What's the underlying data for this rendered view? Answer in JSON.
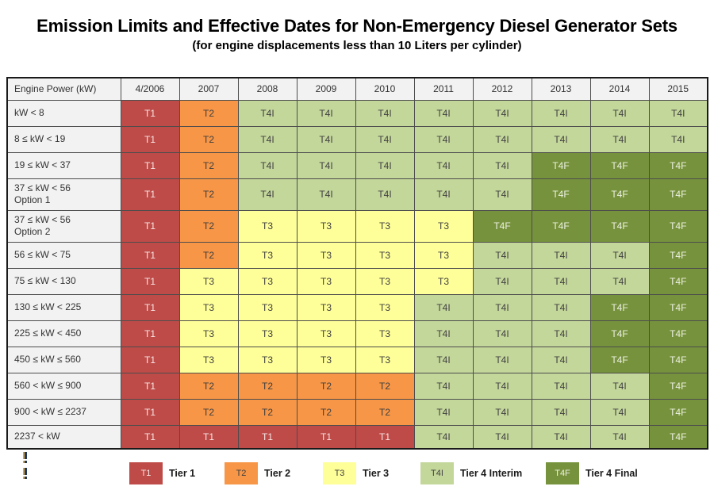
{
  "title": "Emission Limits and Effective Dates for Non-Emergency Diesel Generator Sets",
  "subtitle": "(for engine displacements less than 10 Liters per cylinder)",
  "chart_data": {
    "type": "table",
    "title": "Emission Limits and Effective Dates for Non-Emergency Diesel Generator Sets",
    "subtitle": "(for engine displacements less than 10 Liters per cylinder)",
    "columns": [
      "Engine Power (kW)",
      "4/2006",
      "2007",
      "2008",
      "2009",
      "2010",
      "2011",
      "2012",
      "2013",
      "2014",
      "2015"
    ],
    "rows": [
      {
        "label": "kW < 8",
        "sublabel": "",
        "values": [
          "T1",
          "T2",
          "T4I",
          "T4I",
          "T4I",
          "T4I",
          "T4I",
          "T4I",
          "T4I",
          "T4I"
        ]
      },
      {
        "label": "8 ≤ kW < 19",
        "sublabel": "",
        "values": [
          "T1",
          "T2",
          "T4I",
          "T4I",
          "T4I",
          "T4I",
          "T4I",
          "T4I",
          "T4I",
          "T4I"
        ]
      },
      {
        "label": "19 ≤ kW < 37",
        "sublabel": "",
        "values": [
          "T1",
          "T2",
          "T4I",
          "T4I",
          "T4I",
          "T4I",
          "T4I",
          "T4F",
          "T4F",
          "T4F"
        ]
      },
      {
        "label": "37 ≤ kW < 56",
        "sublabel": "Option 1",
        "values": [
          "T1",
          "T2",
          "T4I",
          "T4I",
          "T4I",
          "T4I",
          "T4I",
          "T4F",
          "T4F",
          "T4F"
        ]
      },
      {
        "label": "37 ≤ kW < 56",
        "sublabel": "Option 2",
        "values": [
          "T1",
          "T2",
          "T3",
          "T3",
          "T3",
          "T3",
          "T4F",
          "T4F",
          "T4F",
          "T4F"
        ]
      },
      {
        "label": "56 ≤ kW < 75",
        "sublabel": "",
        "values": [
          "T1",
          "T2",
          "T3",
          "T3",
          "T3",
          "T3",
          "T4I",
          "T4I",
          "T4I",
          "T4F"
        ]
      },
      {
        "label": "75 ≤ kW < 130",
        "sublabel": "",
        "values": [
          "T1",
          "T3",
          "T3",
          "T3",
          "T3",
          "T3",
          "T4I",
          "T4I",
          "T4I",
          "T4F"
        ]
      },
      {
        "label": "130 ≤ kW < 225",
        "sublabel": "",
        "values": [
          "T1",
          "T3",
          "T3",
          "T3",
          "T3",
          "T4I",
          "T4I",
          "T4I",
          "T4F",
          "T4F"
        ]
      },
      {
        "label": "225 ≤ kW < 450",
        "sublabel": "",
        "values": [
          "T1",
          "T3",
          "T3",
          "T3",
          "T3",
          "T4I",
          "T4I",
          "T4I",
          "T4F",
          "T4F"
        ]
      },
      {
        "label": "450 ≤ kW ≤ 560",
        "sublabel": "",
        "values": [
          "T1",
          "T3",
          "T3",
          "T3",
          "T3",
          "T4I",
          "T4I",
          "T4I",
          "T4F",
          "T4F"
        ]
      },
      {
        "label": "560 < kW ≤ 900",
        "sublabel": "",
        "values": [
          "T1",
          "T2",
          "T2",
          "T2",
          "T2",
          "T4I",
          "T4I",
          "T4I",
          "T4I",
          "T4F"
        ]
      },
      {
        "label": "900 < kW ≤ 2237",
        "sublabel": "",
        "values": [
          "T1",
          "T2",
          "T2",
          "T2",
          "T2",
          "T4I",
          "T4I",
          "T4I",
          "T4I",
          "T4F"
        ]
      },
      {
        "label": "2237 < kW",
        "sublabel": "",
        "values": [
          "T1",
          "T1",
          "T1",
          "T1",
          "T1",
          "T4I",
          "T4I",
          "T4I",
          "T4I",
          "T4F"
        ]
      }
    ],
    "legend": [
      {
        "code": "T1",
        "label": "Tier 1"
      },
      {
        "code": "T2",
        "label": "Tier 2"
      },
      {
        "code": "T3",
        "label": "Tier 3"
      },
      {
        "code": "T4I",
        "label": "Tier 4 Interim"
      },
      {
        "code": "T4F",
        "label": "Tier 4 Final"
      }
    ],
    "legend_position": "bottom"
  },
  "tiers": {
    "T1": {
      "name": "Tier 1",
      "bg": "#BE4B48",
      "fg": "#F6E5E4"
    },
    "T2": {
      "name": "Tier 2",
      "bg": "#F79646",
      "fg": "#3F3F3F"
    },
    "T3": {
      "name": "Tier 3",
      "bg": "#FFFF99",
      "fg": "#3F3F3F"
    },
    "T4I": {
      "name": "Tier 4 Interim",
      "bg": "#C4D79B",
      "fg": "#3F3F3F"
    },
    "T4F": {
      "name": "Tier 4 Final",
      "bg": "#76923C",
      "fg": "#EDF1E2"
    }
  },
  "header_bg": "#F2F2F2",
  "footnote_markers": [
    "!",
    "!"
  ]
}
